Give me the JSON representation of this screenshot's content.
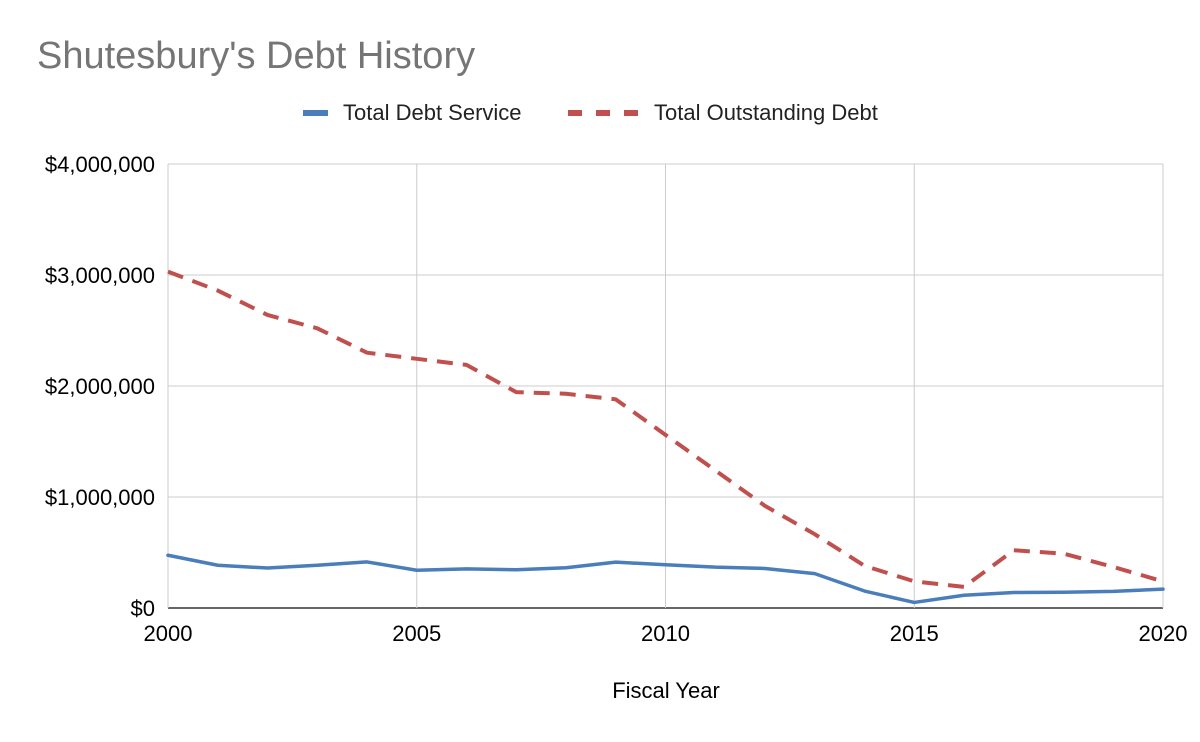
{
  "chart_data": {
    "type": "line",
    "title": "Shutesbury's Debt History",
    "xlabel": "Fiscal Year",
    "ylabel": "",
    "x": [
      2000,
      2001,
      2002,
      2003,
      2004,
      2005,
      2006,
      2007,
      2008,
      2009,
      2010,
      2011,
      2012,
      2013,
      2014,
      2015,
      2016,
      2017,
      2018,
      2019,
      2020
    ],
    "xlim": [
      2000,
      2020
    ],
    "ylim": [
      0,
      4000000
    ],
    "x_ticks": [
      "2000",
      "2005",
      "2010",
      "2015",
      "2020"
    ],
    "x_tick_values": [
      2000,
      2005,
      2010,
      2015,
      2020
    ],
    "y_ticks": [
      "$0",
      "$1,000,000",
      "$2,000,000",
      "$3,000,000",
      "$4,000,000"
    ],
    "y_tick_values": [
      0,
      1000000,
      2000000,
      3000000,
      4000000
    ],
    "grid": true,
    "legend_position": "top",
    "series": [
      {
        "name": "Total Debt Service",
        "color": "#4a7ebb",
        "line_style": "solid",
        "values": [
          475000,
          385000,
          360000,
          385000,
          415000,
          340000,
          352000,
          345000,
          363000,
          413000,
          390000,
          368000,
          356000,
          310000,
          153000,
          50000,
          115000,
          140000,
          142000,
          150000,
          170000
        ]
      },
      {
        "name": "Total Outstanding Debt",
        "color": "#c0504d",
        "line_style": "dashed",
        "values": [
          3030000,
          2860000,
          2640000,
          2520000,
          2300000,
          2245000,
          2190000,
          1945000,
          1930000,
          1880000,
          1560000,
          1240000,
          920000,
          665000,
          380000,
          240000,
          190000,
          520000,
          490000,
          370000,
          240000
        ]
      }
    ]
  }
}
